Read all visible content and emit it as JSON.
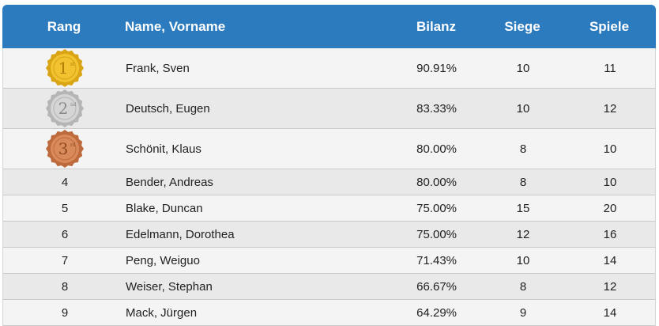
{
  "table": {
    "headers": {
      "rank": "Rang",
      "name": "Name, Vorname",
      "bilanz": "Bilanz",
      "siege": "Siege",
      "spiele": "Spiele"
    },
    "medals": [
      {
        "digit": "1",
        "suffix": "st",
        "fill": "#f2c230",
        "ring": "#d9a514",
        "text": "#b07c05"
      },
      {
        "digit": "2",
        "suffix": "nd",
        "fill": "#d5d5d5",
        "ring": "#b5b5b5",
        "text": "#8a8a8a"
      },
      {
        "digit": "3",
        "suffix": "rd",
        "fill": "#d98a5a",
        "ring": "#bd6a3c",
        "text": "#8f4a22"
      }
    ],
    "rows": [
      {
        "rank": "",
        "name": "Frank, Sven",
        "bilanz": "90.91%",
        "siege": "10",
        "spiele": "11"
      },
      {
        "rank": "",
        "name": "Deutsch, Eugen",
        "bilanz": "83.33%",
        "siege": "10",
        "spiele": "12"
      },
      {
        "rank": "",
        "name": "Schönit, Klaus",
        "bilanz": "80.00%",
        "siege": "8",
        "spiele": "10"
      },
      {
        "rank": "4",
        "name": "Bender, Andreas",
        "bilanz": "80.00%",
        "siege": "8",
        "spiele": "10"
      },
      {
        "rank": "5",
        "name": "Blake, Duncan",
        "bilanz": "75.00%",
        "siege": "15",
        "spiele": "20"
      },
      {
        "rank": "6",
        "name": "Edelmann, Dorothea",
        "bilanz": "75.00%",
        "siege": "12",
        "spiele": "16"
      },
      {
        "rank": "7",
        "name": "Peng, Weiguo",
        "bilanz": "71.43%",
        "siege": "10",
        "spiele": "14"
      },
      {
        "rank": "8",
        "name": "Weiser, Stephan",
        "bilanz": "66.67%",
        "siege": "8",
        "spiele": "12"
      },
      {
        "rank": "9",
        "name": "Mack, Jürgen",
        "bilanz": "64.29%",
        "siege": "9",
        "spiele": "14"
      }
    ],
    "colors": {
      "header_bg": "#2c7bbf",
      "row_odd": "#f4f4f4",
      "row_even": "#e9e9e9"
    }
  }
}
